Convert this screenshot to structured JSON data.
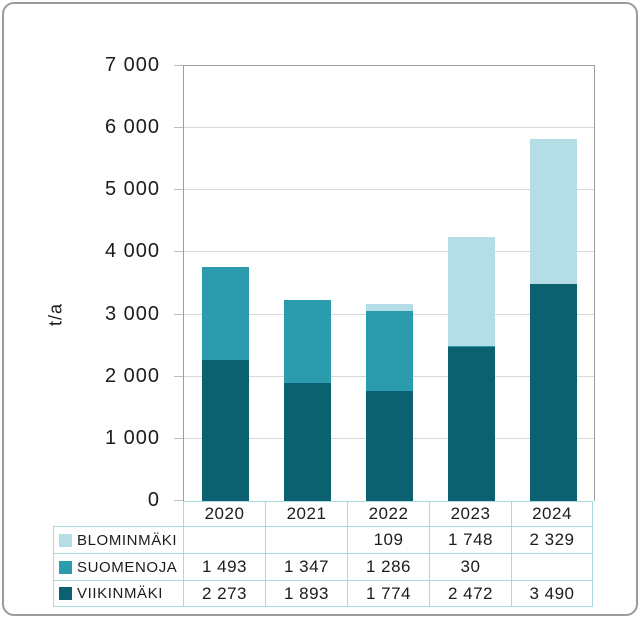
{
  "chart_data": {
    "type": "bar",
    "stacked": true,
    "categories": [
      "2020",
      "2021",
      "2022",
      "2023",
      "2024"
    ],
    "series": [
      {
        "name": "BLOMINMÄKI",
        "color": "#b5dde6",
        "values": [
          null,
          null,
          109,
          1748,
          2329
        ]
      },
      {
        "name": "SUOMENOJA",
        "color": "#2a9cad",
        "values": [
          1493,
          1347,
          1286,
          30,
          null
        ]
      },
      {
        "name": "VIIKINMÄKI",
        "color": "#0b6170",
        "values": [
          2273,
          1893,
          1774,
          2472,
          3490
        ]
      }
    ],
    "stack_order_bottom_to_top": [
      "VIIKINMÄKI",
      "SUOMENOJA",
      "BLOMINMÄKI"
    ],
    "ylabel": "t/a",
    "xlabel": "",
    "ylim": [
      0,
      7000
    ],
    "ytick_interval": 1000,
    "ytick_labels": [
      "0",
      "1 000",
      "2 000",
      "3 000",
      "4 000",
      "5 000",
      "6 000",
      "7 000"
    ],
    "grid": true,
    "legend_position": "table-below-with-values",
    "number_format": "space-thousands"
  },
  "colors": {
    "gridline": "#d9d9d9",
    "plot_border": "#9e9e9e",
    "table_border": "#a9dade",
    "outer_border": "#9b9b9b",
    "text": "#1c1c1c"
  }
}
